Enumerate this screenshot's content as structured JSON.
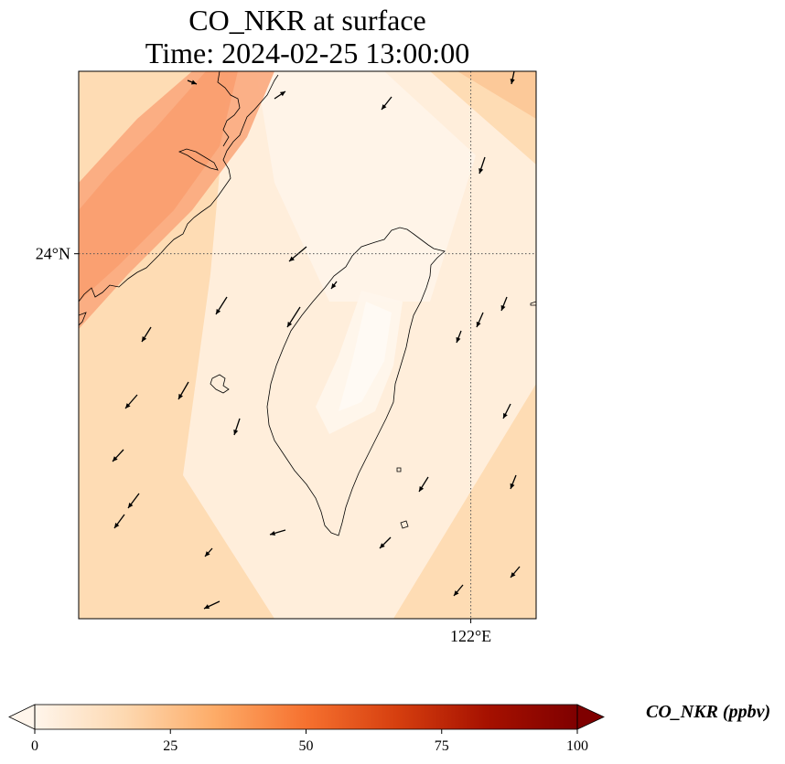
{
  "title_line1": "CO_NKR at surface",
  "title_line2": "Time: 2024-02-25 13:00:00",
  "map": {
    "lat_range": [
      22.0,
      25.0
    ],
    "lon_range": [
      119.0,
      122.5
    ],
    "gridlines": {
      "lat": [
        {
          "value": 24.0,
          "label": "24°N"
        }
      ],
      "lon": [
        {
          "value": 122.0,
          "label": "122°E"
        }
      ]
    },
    "field_colors": {
      "high_band": "#fba97d",
      "background": "#fedcb4",
      "low_center": "#fff5ea"
    },
    "coastline_color": "#000000",
    "vector_color": "#000000"
  },
  "colorbar": {
    "label": "CO_NKR (ppbv)",
    "min": 0,
    "max": 100,
    "ticks": [
      {
        "value": 0,
        "label": "0"
      },
      {
        "value": 25,
        "label": "25"
      },
      {
        "value": 50,
        "label": "50"
      },
      {
        "value": 75,
        "label": "75"
      },
      {
        "value": 100,
        "label": "100"
      }
    ],
    "extend": "both",
    "stops": [
      "#fff5eb",
      "#fdd8b0",
      "#fdab67",
      "#f6712f",
      "#d63f0f",
      "#a61100",
      "#7f0000"
    ]
  }
}
